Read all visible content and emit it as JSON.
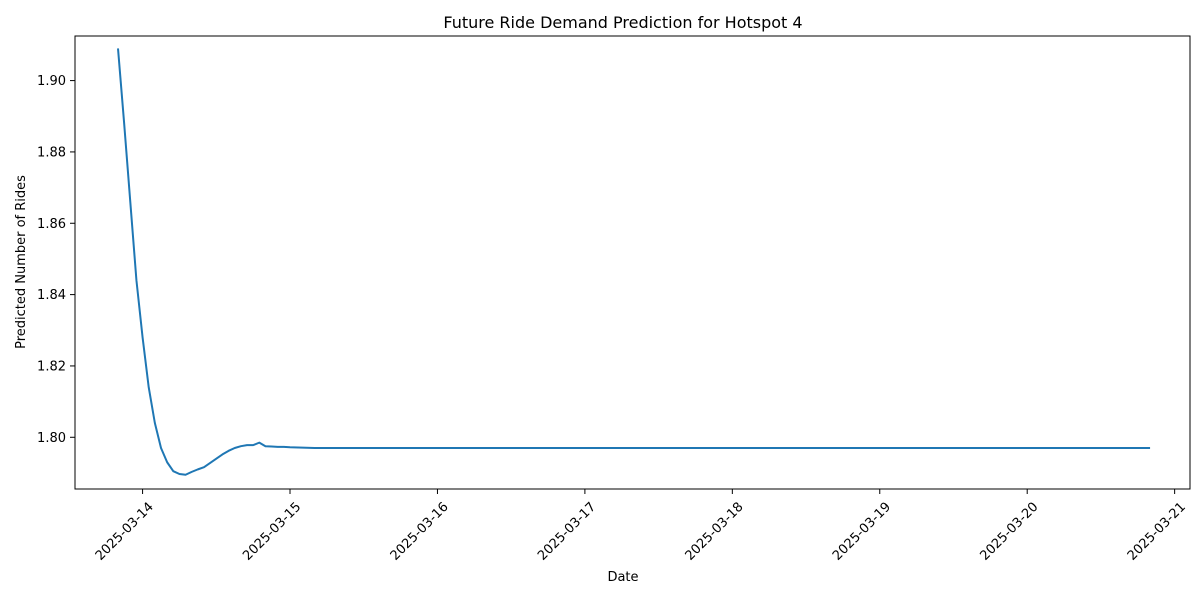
{
  "chart_data": {
    "type": "line",
    "title": "Future Ride Demand Prediction for Hotspot 4",
    "xlabel": "Date",
    "ylabel": "Predicted Number of Rides",
    "x_axis_type": "date",
    "xlim": [
      "2025-03-13T13:00",
      "2025-03-21T02:30"
    ],
    "ylim": [
      1.7855,
      1.9125
    ],
    "x_ticks": [
      "2025-03-14",
      "2025-03-15",
      "2025-03-16",
      "2025-03-17",
      "2025-03-18",
      "2025-03-19",
      "2025-03-20",
      "2025-03-21"
    ],
    "y_ticks": [
      1.8,
      1.82,
      1.84,
      1.86,
      1.88,
      1.9
    ],
    "y_tick_labels": [
      "1.80",
      "1.82",
      "1.84",
      "1.86",
      "1.88",
      "1.90"
    ],
    "grid": false,
    "line_color": "#1f77b4",
    "series": [
      {
        "name": "",
        "x": [
          "2025-03-13T20:00",
          "2025-03-13T21:00",
          "2025-03-13T22:00",
          "2025-03-13T23:00",
          "2025-03-14T00:00",
          "2025-03-14T01:00",
          "2025-03-14T02:00",
          "2025-03-14T03:00",
          "2025-03-14T04:00",
          "2025-03-14T05:00",
          "2025-03-14T06:00",
          "2025-03-14T07:00",
          "2025-03-14T08:00",
          "2025-03-14T09:00",
          "2025-03-14T10:00",
          "2025-03-14T11:00",
          "2025-03-14T12:00",
          "2025-03-14T13:00",
          "2025-03-14T14:00",
          "2025-03-14T15:00",
          "2025-03-14T16:00",
          "2025-03-14T17:00",
          "2025-03-14T18:00",
          "2025-03-14T19:00",
          "2025-03-14T20:00",
          "2025-03-14T21:00",
          "2025-03-14T22:00",
          "2025-03-14T23:00",
          "2025-03-15T00:00",
          "2025-03-15T02:00",
          "2025-03-15T04:00",
          "2025-03-15T08:00",
          "2025-03-15T12:00",
          "2025-03-16T00:00",
          "2025-03-17T00:00",
          "2025-03-18T00:00",
          "2025-03-19T00:00",
          "2025-03-20T00:00",
          "2025-03-20T20:00"
        ],
        "y": [
          1.909,
          1.888,
          1.866,
          1.844,
          1.828,
          1.814,
          1.804,
          1.797,
          1.793,
          1.7905,
          1.7897,
          1.7895,
          1.7903,
          1.791,
          1.7916,
          1.7928,
          1.794,
          1.7952,
          1.7962,
          1.797,
          1.7975,
          1.7978,
          1.7978,
          1.7985,
          1.7975,
          1.7974,
          1.7973,
          1.7973,
          1.7972,
          1.7971,
          1.797,
          1.797,
          1.797,
          1.797,
          1.797,
          1.797,
          1.797,
          1.797,
          1.797
        ]
      }
    ]
  }
}
